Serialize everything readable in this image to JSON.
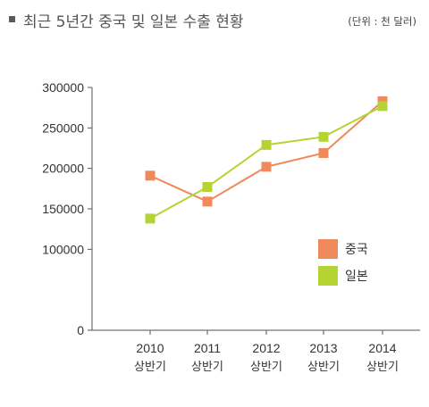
{
  "header": {
    "title": "최근 5년간 중국 및 일본 수출 현황",
    "unit": "(단위 : 천 달러)"
  },
  "chart_data": {
    "type": "line",
    "title": "최근 5년간 중국 및 일본 수출 현황",
    "xlabel": "",
    "ylabel": "",
    "categories": [
      {
        "year": "2010",
        "sub": "상반기"
      },
      {
        "year": "2011",
        "sub": "상반기"
      },
      {
        "year": "2012",
        "sub": "상반기"
      },
      {
        "year": "2013",
        "sub": "상반기"
      },
      {
        "year": "2014",
        "sub": "상반기"
      }
    ],
    "yticks": [
      0,
      100000,
      150000,
      200000,
      250000,
      300000
    ],
    "ylim": [
      0,
      300000
    ],
    "grid": false,
    "legend": "right",
    "series": [
      {
        "name": "중국",
        "color": "#F08A5D",
        "values": [
          191000,
          159000,
          202000,
          219000,
          283000
        ]
      },
      {
        "name": "일본",
        "color": "#B6D334",
        "values": [
          138000,
          177000,
          229000,
          239000,
          277000
        ]
      }
    ]
  }
}
